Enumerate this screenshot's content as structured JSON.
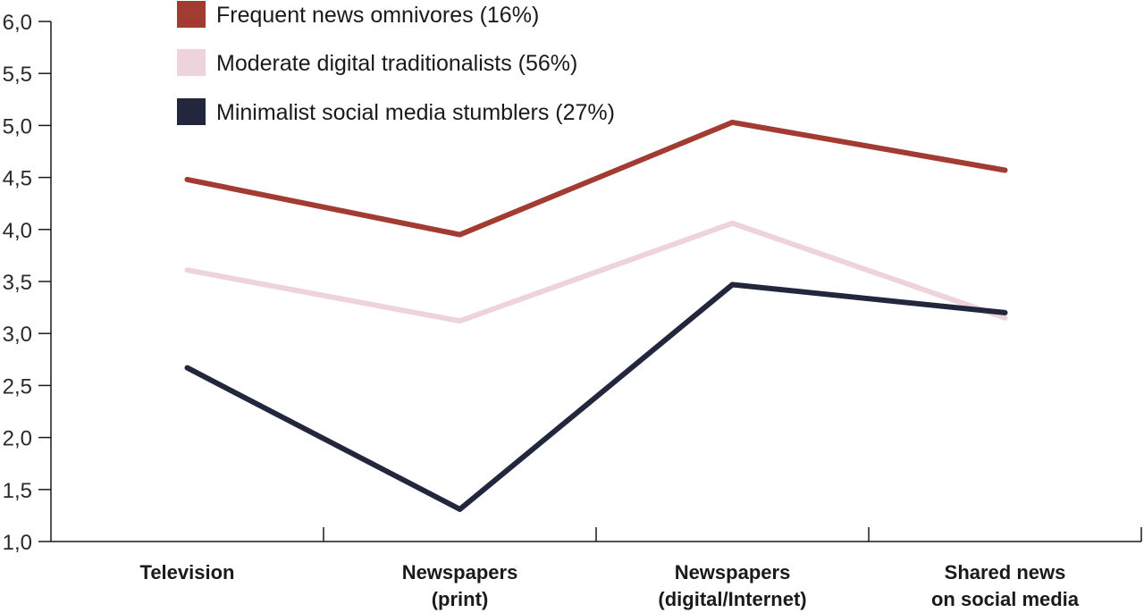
{
  "chart_data": {
    "type": "line",
    "categories": [
      [
        "Television"
      ],
      [
        "Newspapers",
        "(print)"
      ],
      [
        "Newspapers",
        "(digital/Internet)"
      ],
      [
        "Shared news",
        "on social media"
      ]
    ],
    "series": [
      {
        "name": "Frequent news omnivores (16%)",
        "color": "#a23b32",
        "values": [
          4.48,
          3.95,
          5.03,
          4.57
        ]
      },
      {
        "name": "Moderate digital traditionalists (56%)",
        "color": "#efd3dc",
        "values": [
          3.61,
          3.12,
          4.06,
          3.15
        ]
      },
      {
        "name": "Minimalist social media stumblers (27%)",
        "color": "#22273d",
        "values": [
          2.67,
          1.31,
          3.47,
          3.2
        ]
      }
    ],
    "ylim": [
      1.0,
      6.0
    ],
    "yticks": [
      "1,0",
      "1,5",
      "2,0",
      "2,5",
      "3,0",
      "3,5",
      "4,0",
      "4,5",
      "5,0",
      "5,5",
      "6,0"
    ],
    "ytick_values": [
      1.0,
      1.5,
      2.0,
      2.5,
      3.0,
      3.5,
      4.0,
      4.5,
      5.0,
      5.5,
      6.0
    ],
    "grid": false,
    "legend_position": "top-left"
  }
}
